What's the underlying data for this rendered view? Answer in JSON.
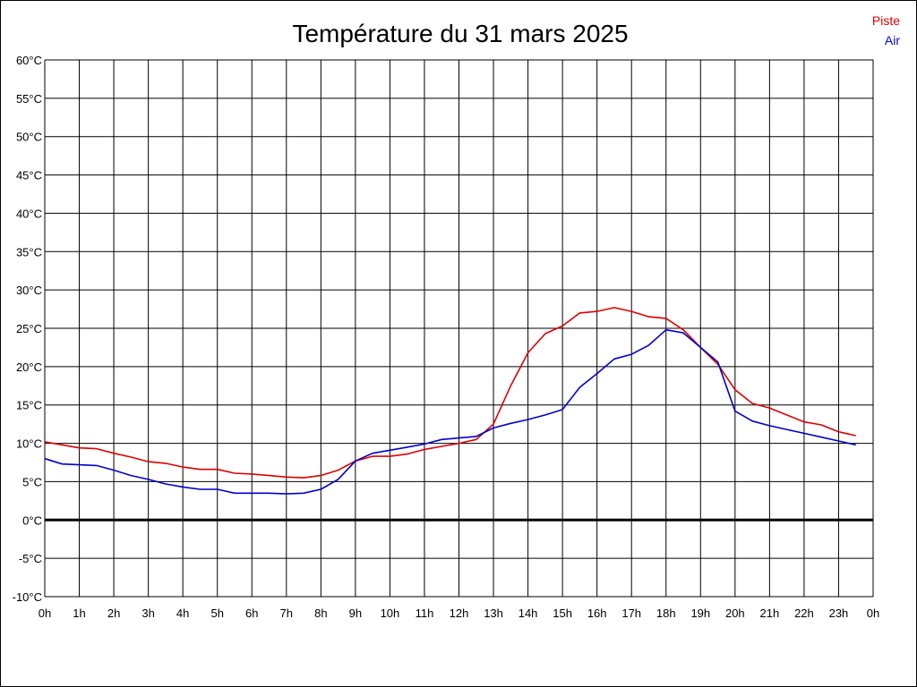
{
  "chart_data": {
    "type": "line",
    "title": "Température du 31 mars 2025",
    "xlabel": "",
    "ylabel": "",
    "ylim": [
      -10,
      60
    ],
    "xlim": [
      0,
      24
    ],
    "y_ticks": [
      "60°C",
      "55°C",
      "50°C",
      "45°C",
      "40°C",
      "35°C",
      "30°C",
      "25°C",
      "20°C",
      "15°C",
      "10°C",
      "5°C",
      "0°C",
      "-5°C",
      "-10°C"
    ],
    "x_ticks": [
      "0h",
      "1h",
      "2h",
      "3h",
      "4h",
      "5h",
      "6h",
      "7h",
      "8h",
      "9h",
      "10h",
      "11h",
      "12h",
      "13h",
      "14h",
      "15h",
      "16h",
      "17h",
      "18h",
      "19h",
      "20h",
      "21h",
      "22h",
      "23h",
      "0h"
    ],
    "grid": true,
    "legend_placement": "top-right",
    "x": [
      0,
      0.5,
      1,
      1.5,
      2,
      2.5,
      3,
      3.5,
      4,
      4.5,
      5,
      5.5,
      6,
      6.5,
      7,
      7.5,
      8,
      8.5,
      9,
      9.5,
      10,
      10.5,
      11,
      11.5,
      12,
      12.5,
      13,
      13.5,
      14,
      14.5,
      15,
      15.5,
      16,
      16.5,
      17,
      17.5,
      18,
      18.5,
      19,
      19.5,
      20,
      20.5,
      21,
      21.5,
      22,
      22.5,
      23,
      23.5
    ],
    "series": [
      {
        "name": "Piste",
        "color": "#dd0000",
        "values": [
          10.2,
          9.8,
          9.4,
          9.3,
          8.7,
          8.2,
          7.6,
          7.4,
          6.9,
          6.6,
          6.6,
          6.1,
          6.0,
          5.8,
          5.6,
          5.5,
          5.8,
          6.5,
          7.7,
          8.3,
          8.3,
          8.6,
          9.2,
          9.6,
          10.0,
          10.5,
          12.5,
          17.5,
          21.8,
          24.3,
          25.3,
          27.0,
          27.2,
          27.7,
          27.2,
          26.5,
          26.3,
          24.8,
          22.5,
          20.3,
          17.0,
          15.2,
          14.6,
          13.7,
          12.8,
          12.4,
          11.5,
          11.0
        ]
      },
      {
        "name": "Air",
        "color": "#0000cc",
        "values": [
          8.0,
          7.3,
          7.2,
          7.1,
          6.5,
          5.8,
          5.3,
          4.7,
          4.3,
          4.0,
          4.0,
          3.5,
          3.5,
          3.5,
          3.4,
          3.5,
          4.0,
          5.3,
          7.7,
          8.7,
          9.1,
          9.5,
          9.9,
          10.5,
          10.7,
          10.9,
          12.0,
          12.6,
          13.1,
          13.7,
          14.4,
          17.3,
          19.1,
          21.0,
          21.6,
          22.8,
          24.8,
          24.4,
          22.5,
          20.6,
          14.2,
          12.9,
          12.3,
          11.8,
          11.3,
          10.8,
          10.3,
          9.8
        ]
      }
    ]
  }
}
